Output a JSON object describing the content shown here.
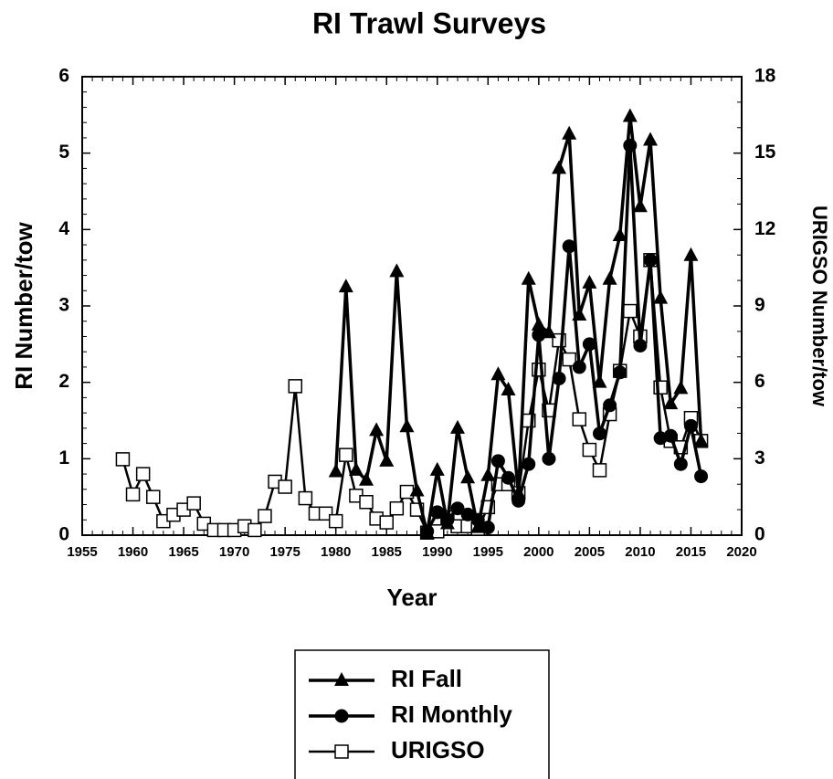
{
  "chart_data": {
    "type": "line",
    "title": "RI Trawl Surveys",
    "xlabel": "Year",
    "ylabel": "RI Number/tow",
    "y2label": "URIGSO Number/tow",
    "xlim": [
      1955,
      2020
    ],
    "xticks": [
      1955,
      1960,
      1965,
      1970,
      1975,
      1980,
      1985,
      1990,
      1995,
      2000,
      2005,
      2010,
      2015,
      2020
    ],
    "ylim": [
      0,
      6
    ],
    "yticks": [
      0,
      1,
      2,
      3,
      4,
      5,
      6
    ],
    "y2lim": [
      0,
      18
    ],
    "y2ticks": [
      0,
      3,
      6,
      9,
      12,
      15,
      18
    ],
    "series": [
      {
        "name": "URIGSO",
        "color": "#000000",
        "marker": "square",
        "axis": "y2",
        "x": [
          1959,
          1960,
          1961,
          1962,
          1963,
          1964,
          1965,
          1966,
          1967,
          1968,
          1969,
          1970,
          1971,
          1972,
          1973,
          1974,
          1975,
          1976,
          1977,
          1978,
          1979,
          1980,
          1981,
          1982,
          1983,
          1984,
          1985,
          1986,
          1987,
          1988,
          1989,
          1990,
          1991,
          1992,
          1993,
          1994,
          1995,
          1996,
          1997,
          1998,
          1999,
          2000,
          2001,
          2002,
          2003,
          2004,
          2005,
          2006,
          2007,
          2008,
          2009,
          2010,
          2011,
          2012,
          2013,
          2014,
          2015,
          2016
        ],
        "values": [
          2.98,
          1.6,
          2.4,
          1.5,
          0.55,
          0.8,
          1.0,
          1.25,
          0.45,
          0.2,
          0.2,
          0.2,
          0.35,
          0.2,
          0.75,
          2.1,
          1.9,
          5.85,
          1.45,
          0.85,
          0.85,
          0.55,
          3.15,
          1.55,
          1.3,
          0.65,
          0.5,
          1.05,
          1.7,
          1.0,
          0.1,
          0.15,
          0.7,
          0.35,
          0.35,
          0.25,
          1.1,
          2.0,
          2.0,
          1.65,
          4.5,
          6.5,
          4.9,
          7.65,
          6.9,
          4.55,
          3.35,
          2.55,
          4.75,
          6.45,
          8.8,
          7.8,
          10.8,
          5.8,
          3.7,
          3.45,
          4.6,
          3.7
        ]
      },
      {
        "name": "RI Fall",
        "color": "#000000",
        "marker": "triangle",
        "x": [
          1980,
          1981,
          1982,
          1983,
          1984,
          1985,
          1986,
          1987,
          1988,
          1989,
          1990,
          1991,
          1992,
          1993,
          1994,
          1995,
          1996,
          1997,
          1998,
          1999,
          2000,
          2001,
          2002,
          2003,
          2004,
          2005,
          2006,
          2007,
          2008,
          2009,
          2010,
          2011,
          2012,
          2013,
          2014,
          2015,
          2016
        ],
        "values": [
          0.83,
          3.25,
          0.85,
          0.72,
          1.37,
          0.97,
          3.45,
          1.42,
          0.58,
          0.03,
          0.85,
          0.15,
          1.4,
          0.75,
          0.1,
          0.78,
          2.1,
          1.9,
          0.55,
          3.35,
          2.75,
          2.65,
          4.8,
          5.25,
          2.88,
          3.3,
          2.0,
          3.35,
          3.92,
          5.48,
          4.3,
          5.17,
          3.1,
          1.72,
          1.92,
          3.66,
          1.23
        ]
      },
      {
        "name": "RI Monthly",
        "color": "#000000",
        "marker": "circle",
        "x": [
          1989,
          1990,
          1991,
          1992,
          1993,
          1994,
          1995,
          1996,
          1997,
          1998,
          1999,
          2000,
          2001,
          2002,
          2003,
          2004,
          2005,
          2006,
          2007,
          2008,
          2009,
          2010,
          2011,
          2012,
          2013,
          2014,
          2015,
          2016
        ],
        "values": [
          0.05,
          0.3,
          0.2,
          0.35,
          0.27,
          0.2,
          0.1,
          0.97,
          0.75,
          0.45,
          0.93,
          2.62,
          1.0,
          2.05,
          3.78,
          2.2,
          2.5,
          1.33,
          1.7,
          2.13,
          5.1,
          2.48,
          3.6,
          1.27,
          1.3,
          0.93,
          1.43,
          0.77
        ]
      }
    ]
  }
}
